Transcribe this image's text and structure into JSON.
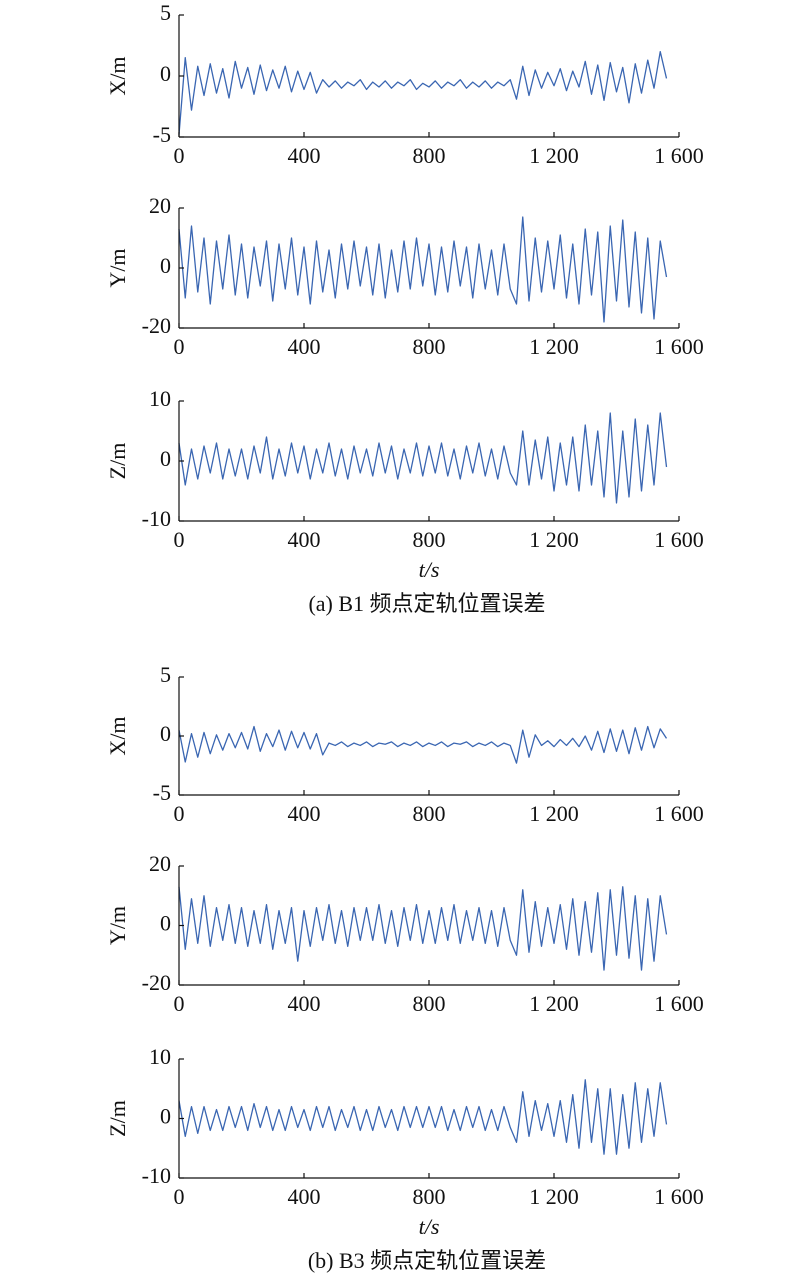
{
  "chart_data": [
    {
      "type": "line",
      "ylabel": "X/m",
      "color": "#3a66b2",
      "xlim": [
        0,
        1600
      ],
      "ylim": [
        -5,
        5
      ],
      "yticks": [
        -5,
        0,
        5
      ],
      "xticks": [
        0,
        400,
        800,
        {
          "value": 1200,
          "label": "1 200"
        },
        {
          "value": 1600,
          "label": "1 600"
        }
      ],
      "x": [
        0,
        20,
        40,
        60,
        80,
        100,
        120,
        140,
        160,
        180,
        200,
        220,
        240,
        260,
        280,
        300,
        320,
        340,
        360,
        380,
        400,
        420,
        440,
        460,
        480,
        500,
        520,
        540,
        560,
        580,
        600,
        620,
        640,
        660,
        680,
        700,
        720,
        740,
        760,
        780,
        800,
        820,
        840,
        860,
        880,
        900,
        920,
        940,
        960,
        980,
        1000,
        1020,
        1040,
        1060,
        1080,
        1100,
        1120,
        1140,
        1160,
        1180,
        1200,
        1220,
        1240,
        1260,
        1280,
        1300,
        1320,
        1340,
        1360,
        1380,
        1400,
        1420,
        1440,
        1460,
        1480,
        1500,
        1520,
        1540,
        1560
      ],
      "values": [
        -4.8,
        1.5,
        -2.8,
        0.8,
        -1.6,
        1.0,
        -1.4,
        0.6,
        -1.8,
        1.2,
        -1.0,
        0.7,
        -1.5,
        0.9,
        -1.2,
        0.5,
        -1.0,
        0.8,
        -1.3,
        0.4,
        -1.1,
        0.3,
        -1.4,
        -0.3,
        -0.9,
        -0.4,
        -1.0,
        -0.5,
        -0.8,
        -0.3,
        -1.1,
        -0.5,
        -0.9,
        -0.4,
        -1.0,
        -0.5,
        -0.8,
        -0.3,
        -1.1,
        -0.6,
        -0.9,
        -0.4,
        -1.0,
        -0.5,
        -0.8,
        -0.3,
        -1.0,
        -0.5,
        -0.9,
        -0.4,
        -1.0,
        -0.5,
        -0.8,
        -0.3,
        -1.9,
        0.8,
        -1.6,
        0.5,
        -1.0,
        0.3,
        -0.8,
        0.6,
        -1.2,
        0.4,
        -0.9,
        1.2,
        -1.5,
        0.9,
        -2.0,
        1.1,
        -1.3,
        0.7,
        -2.2,
        1.0,
        -1.4,
        1.3,
        -1.0,
        2.0,
        -0.2
      ]
    },
    {
      "type": "line",
      "ylabel": "Y/m",
      "color": "#3a66b2",
      "xlim": [
        0,
        1600
      ],
      "ylim": [
        -20,
        20
      ],
      "yticks": [
        -20,
        0,
        20
      ],
      "xticks": [
        0,
        400,
        800,
        {
          "value": 1200,
          "label": "1 200"
        },
        {
          "value": 1600,
          "label": "1 600"
        }
      ],
      "x": [
        0,
        20,
        40,
        60,
        80,
        100,
        120,
        140,
        160,
        180,
        200,
        220,
        240,
        260,
        280,
        300,
        320,
        340,
        360,
        380,
        400,
        420,
        440,
        460,
        480,
        500,
        520,
        540,
        560,
        580,
        600,
        620,
        640,
        660,
        680,
        700,
        720,
        740,
        760,
        780,
        800,
        820,
        840,
        860,
        880,
        900,
        920,
        940,
        960,
        980,
        1000,
        1020,
        1040,
        1060,
        1080,
        1100,
        1120,
        1140,
        1160,
        1180,
        1200,
        1220,
        1240,
        1260,
        1280,
        1300,
        1320,
        1340,
        1360,
        1380,
        1400,
        1420,
        1440,
        1460,
        1480,
        1500,
        1520,
        1540,
        1560
      ],
      "values": [
        13,
        -10,
        14,
        -8,
        10,
        -12,
        9,
        -7,
        11,
        -9,
        8,
        -10,
        7,
        -6,
        9,
        -11,
        8,
        -7,
        10,
        -9,
        7,
        -12,
        9,
        -8,
        6,
        -10,
        8,
        -7,
        9,
        -6,
        7,
        -9,
        8,
        -10,
        6,
        -8,
        9,
        -7,
        10,
        -6,
        8,
        -9,
        7,
        -8,
        9,
        -6,
        7,
        -10,
        8,
        -7,
        6,
        -9,
        8,
        -7,
        -12,
        17,
        -11,
        10,
        -8,
        9,
        -7,
        11,
        -10,
        8,
        -12,
        13,
        -9,
        12,
        -18,
        14,
        -11,
        16,
        -13,
        12,
        -15,
        10,
        -17,
        9,
        -3
      ]
    },
    {
      "type": "line",
      "ylabel": "Z/m",
      "color": "#3a66b2",
      "xlim": [
        0,
        1600
      ],
      "ylim": [
        -10,
        10
      ],
      "yticks": [
        -10,
        0,
        10
      ],
      "xticks": [
        0,
        400,
        800,
        {
          "value": 1200,
          "label": "1 200"
        },
        {
          "value": 1600,
          "label": "1 600"
        }
      ],
      "xlabel": "t/s",
      "caption": "(a) B1 频点定轨位置误差",
      "x": [
        0,
        20,
        40,
        60,
        80,
        100,
        120,
        140,
        160,
        180,
        200,
        220,
        240,
        260,
        280,
        300,
        320,
        340,
        360,
        380,
        400,
        420,
        440,
        460,
        480,
        500,
        520,
        540,
        560,
        580,
        600,
        620,
        640,
        660,
        680,
        700,
        720,
        740,
        760,
        780,
        800,
        820,
        840,
        860,
        880,
        900,
        920,
        940,
        960,
        980,
        1000,
        1020,
        1040,
        1060,
        1080,
        1100,
        1120,
        1140,
        1160,
        1180,
        1200,
        1220,
        1240,
        1260,
        1280,
        1300,
        1320,
        1340,
        1360,
        1380,
        1400,
        1420,
        1440,
        1460,
        1480,
        1500,
        1520,
        1540,
        1560
      ],
      "values": [
        3,
        -4,
        2,
        -3,
        2.5,
        -2,
        3,
        -3,
        2,
        -2.5,
        2,
        -3,
        2.5,
        -2,
        4,
        -3,
        2,
        -2.5,
        3,
        -2,
        2.5,
        -3,
        2,
        -2,
        3,
        -2.5,
        2,
        -3,
        2.5,
        -2,
        2,
        -2.5,
        3,
        -2,
        2.5,
        -3,
        2,
        -2,
        3,
        -2.5,
        2.5,
        -2,
        3,
        -2.5,
        2,
        -3,
        2.5,
        -2,
        3,
        -2.5,
        2,
        -3,
        2.5,
        -2,
        -4,
        5,
        -4,
        3.5,
        -3,
        4,
        -5,
        3,
        -4,
        4,
        -5,
        6,
        -4,
        5,
        -6,
        8,
        -7,
        5,
        -6,
        7,
        -5,
        6,
        -4,
        8,
        -1
      ]
    },
    {
      "type": "line",
      "ylabel": "X/m",
      "color": "#3a66b2",
      "xlim": [
        0,
        1600
      ],
      "ylim": [
        -5,
        5
      ],
      "yticks": [
        -5,
        0,
        5
      ],
      "xticks": [
        0,
        400,
        800,
        {
          "value": 1200,
          "label": "1 200"
        },
        {
          "value": 1600,
          "label": "1 600"
        }
      ],
      "x": [
        0,
        20,
        40,
        60,
        80,
        100,
        120,
        140,
        160,
        180,
        200,
        220,
        240,
        260,
        280,
        300,
        320,
        340,
        360,
        380,
        400,
        420,
        440,
        460,
        480,
        500,
        520,
        540,
        560,
        580,
        600,
        620,
        640,
        660,
        680,
        700,
        720,
        740,
        760,
        780,
        800,
        820,
        840,
        860,
        880,
        900,
        920,
        940,
        960,
        980,
        1000,
        1020,
        1040,
        1060,
        1080,
        1100,
        1120,
        1140,
        1160,
        1180,
        1200,
        1220,
        1240,
        1260,
        1280,
        1300,
        1320,
        1340,
        1360,
        1380,
        1400,
        1420,
        1440,
        1460,
        1480,
        1500,
        1520,
        1540,
        1560
      ],
      "values": [
        0.5,
        -2.2,
        0.2,
        -1.8,
        0.3,
        -1.5,
        0.1,
        -1.2,
        0.2,
        -1.0,
        0.3,
        -1.1,
        0.8,
        -1.3,
        0.2,
        -0.9,
        0.5,
        -1.2,
        0.4,
        -1.0,
        0.3,
        -1.1,
        0.2,
        -1.6,
        -0.6,
        -0.8,
        -0.5,
        -0.9,
        -0.6,
        -0.8,
        -0.5,
        -0.9,
        -0.6,
        -0.7,
        -0.5,
        -0.9,
        -0.6,
        -0.8,
        -0.5,
        -0.9,
        -0.6,
        -0.8,
        -0.5,
        -0.9,
        -0.6,
        -0.7,
        -0.5,
        -0.9,
        -0.6,
        -0.8,
        -0.5,
        -0.9,
        -0.6,
        -0.8,
        -2.3,
        0.5,
        -1.8,
        0.1,
        -0.8,
        -0.4,
        -0.9,
        -0.3,
        -0.8,
        -0.2,
        -0.9,
        0.0,
        -1.2,
        0.4,
        -1.4,
        0.6,
        -1.3,
        0.5,
        -1.5,
        0.7,
        -1.2,
        0.8,
        -1.0,
        0.6,
        -0.2
      ]
    },
    {
      "type": "line",
      "ylabel": "Y/m",
      "color": "#3a66b2",
      "xlim": [
        0,
        1600
      ],
      "ylim": [
        -20,
        20
      ],
      "yticks": [
        -20,
        0,
        20
      ],
      "xticks": [
        0,
        400,
        800,
        {
          "value": 1200,
          "label": "1 200"
        },
        {
          "value": 1600,
          "label": "1 600"
        }
      ],
      "x": [
        0,
        20,
        40,
        60,
        80,
        100,
        120,
        140,
        160,
        180,
        200,
        220,
        240,
        260,
        280,
        300,
        320,
        340,
        360,
        380,
        400,
        420,
        440,
        460,
        480,
        500,
        520,
        540,
        560,
        580,
        600,
        620,
        640,
        660,
        680,
        700,
        720,
        740,
        760,
        780,
        800,
        820,
        840,
        860,
        880,
        900,
        920,
        940,
        960,
        980,
        1000,
        1020,
        1040,
        1060,
        1080,
        1100,
        1120,
        1140,
        1160,
        1180,
        1200,
        1220,
        1240,
        1260,
        1280,
        1300,
        1320,
        1340,
        1360,
        1380,
        1400,
        1420,
        1440,
        1460,
        1480,
        1500,
        1520,
        1540,
        1560
      ],
      "values": [
        13,
        -8,
        9,
        -6,
        10,
        -7,
        6,
        -5,
        7,
        -6,
        6,
        -7,
        5,
        -6,
        7,
        -8,
        5,
        -6,
        6,
        -12,
        5,
        -7,
        6,
        -5,
        7,
        -6,
        5,
        -7,
        6,
        -5,
        6,
        -5,
        7,
        -6,
        5,
        -7,
        6,
        -5,
        7,
        -6,
        5,
        -6,
        6,
        -5,
        7,
        -6,
        5,
        -5,
        6,
        -6,
        5,
        -7,
        6,
        -5,
        -10,
        12,
        -9,
        8,
        -7,
        6,
        -6,
        7,
        -8,
        9,
        -10,
        8,
        -9,
        11,
        -15,
        12,
        -10,
        13,
        -11,
        10,
        -15,
        9,
        -12,
        10,
        -3
      ]
    },
    {
      "type": "line",
      "ylabel": "Z/m",
      "color": "#3a66b2",
      "xlim": [
        0,
        1600
      ],
      "ylim": [
        -10,
        10
      ],
      "yticks": [
        -10,
        0,
        10
      ],
      "xticks": [
        0,
        400,
        800,
        {
          "value": 1200,
          "label": "1 200"
        },
        {
          "value": 1600,
          "label": "1 600"
        }
      ],
      "xlabel": "t/s",
      "caption": "(b) B3 频点定轨位置误差",
      "x": [
        0,
        20,
        40,
        60,
        80,
        100,
        120,
        140,
        160,
        180,
        200,
        220,
        240,
        260,
        280,
        300,
        320,
        340,
        360,
        380,
        400,
        420,
        440,
        460,
        480,
        500,
        520,
        540,
        560,
        580,
        600,
        620,
        640,
        660,
        680,
        700,
        720,
        740,
        760,
        780,
        800,
        820,
        840,
        860,
        880,
        900,
        920,
        940,
        960,
        980,
        1000,
        1020,
        1040,
        1060,
        1080,
        1100,
        1120,
        1140,
        1160,
        1180,
        1200,
        1220,
        1240,
        1260,
        1280,
        1300,
        1320,
        1340,
        1360,
        1380,
        1400,
        1420,
        1440,
        1460,
        1480,
        1500,
        1520,
        1540,
        1560
      ],
      "values": [
        3,
        -3,
        2,
        -2.5,
        2,
        -2,
        1.5,
        -2,
        2,
        -1.5,
        2,
        -2,
        2.5,
        -1.5,
        2,
        -2,
        1.5,
        -2,
        2,
        -1.5,
        1.5,
        -2,
        2,
        -1.5,
        2,
        -2,
        1.5,
        -1.5,
        2,
        -2,
        1.5,
        -2,
        2,
        -1.5,
        1.5,
        -2,
        2,
        -1.5,
        2,
        -1.5,
        2,
        -1.5,
        2,
        -2,
        1.5,
        -2,
        2,
        -1.5,
        2,
        -2,
        1.5,
        -2,
        2,
        -1.5,
        -4,
        4.5,
        -3,
        3,
        -2,
        2.5,
        -3,
        3,
        -4,
        4,
        -5,
        6.5,
        -4,
        5,
        -6,
        5,
        -6,
        4,
        -5,
        6,
        -4,
        5,
        -3,
        6,
        -1
      ]
    }
  ]
}
